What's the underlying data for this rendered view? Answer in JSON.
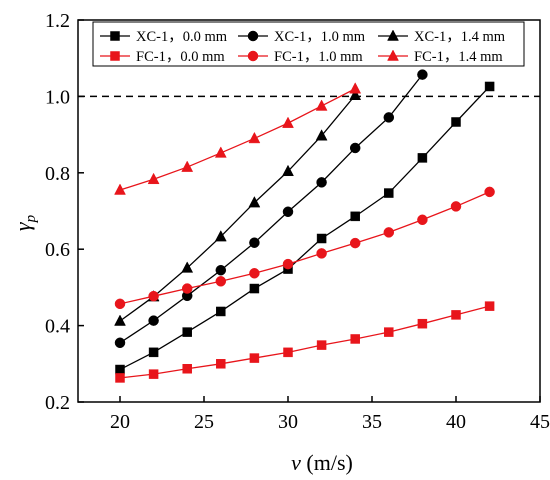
{
  "chart_data": {
    "type": "line",
    "xlabel_var": "v",
    "xlabel_unit": " (m/s)",
    "ylabel_var": "γ",
    "ylabel_sub": "p",
    "xlim": [
      17.5,
      45
    ],
    "ylim": [
      0.2,
      1.2
    ],
    "x_ticks": [
      "20",
      "25",
      "30",
      "35",
      "40",
      "45"
    ],
    "y_ticks": [
      "0.2",
      "0.4",
      "0.6",
      "0.8",
      "1.0",
      "1.2"
    ],
    "x_tick_values": [
      20,
      25,
      30,
      35,
      40,
      45
    ],
    "y_tick_values": [
      0.2,
      0.4,
      0.6,
      0.8,
      1.0,
      1.2
    ],
    "reference_line": {
      "y": 1.0,
      "style": "dashed",
      "color": "#000000"
    },
    "grid": false,
    "legend_position": "top",
    "series": [
      {
        "name": "XC-1，0.0 mm",
        "color": "#000000",
        "marker": "square",
        "x": [
          20,
          22,
          24,
          26,
          28,
          30,
          32,
          34,
          36,
          38,
          40,
          42
        ],
        "y": [
          0.285,
          0.33,
          0.383,
          0.437,
          0.497,
          0.548,
          0.628,
          0.686,
          0.747,
          0.839,
          0.933,
          1.026
        ]
      },
      {
        "name": "XC-1，1.0 mm",
        "color": "#000000",
        "marker": "circle",
        "x": [
          20,
          22,
          24,
          26,
          28,
          30,
          32,
          34,
          36,
          38
        ],
        "y": [
          0.355,
          0.413,
          0.478,
          0.545,
          0.617,
          0.698,
          0.775,
          0.865,
          0.945,
          1.057
        ]
      },
      {
        "name": "XC-1，1.4 mm",
        "color": "#000000",
        "marker": "triangle",
        "x": [
          20,
          22,
          24,
          26,
          28,
          30,
          32,
          34
        ],
        "y": [
          0.412,
          0.476,
          0.551,
          0.633,
          0.722,
          0.804,
          0.897,
          1.003
        ]
      },
      {
        "name": "FC-1，0.0 mm",
        "color": "#e8151b",
        "marker": "square",
        "x": [
          20,
          22,
          24,
          26,
          28,
          30,
          32,
          34,
          36,
          38,
          40,
          42
        ],
        "y": [
          0.263,
          0.273,
          0.287,
          0.3,
          0.315,
          0.33,
          0.349,
          0.365,
          0.383,
          0.405,
          0.428,
          0.451
        ]
      },
      {
        "name": "FC-1，1.0 mm",
        "color": "#e8151b",
        "marker": "circle",
        "x": [
          20,
          22,
          24,
          26,
          28,
          30,
          32,
          34,
          36,
          38,
          40,
          42
        ],
        "y": [
          0.457,
          0.477,
          0.497,
          0.516,
          0.537,
          0.561,
          0.589,
          0.616,
          0.644,
          0.677,
          0.712,
          0.75
        ]
      },
      {
        "name": "FC-1，1.4 mm",
        "color": "#e8151b",
        "marker": "triangle",
        "x": [
          20,
          22,
          24,
          26,
          28,
          30,
          32,
          34
        ],
        "y": [
          0.755,
          0.783,
          0.815,
          0.852,
          0.89,
          0.93,
          0.975,
          1.02
        ]
      }
    ]
  }
}
